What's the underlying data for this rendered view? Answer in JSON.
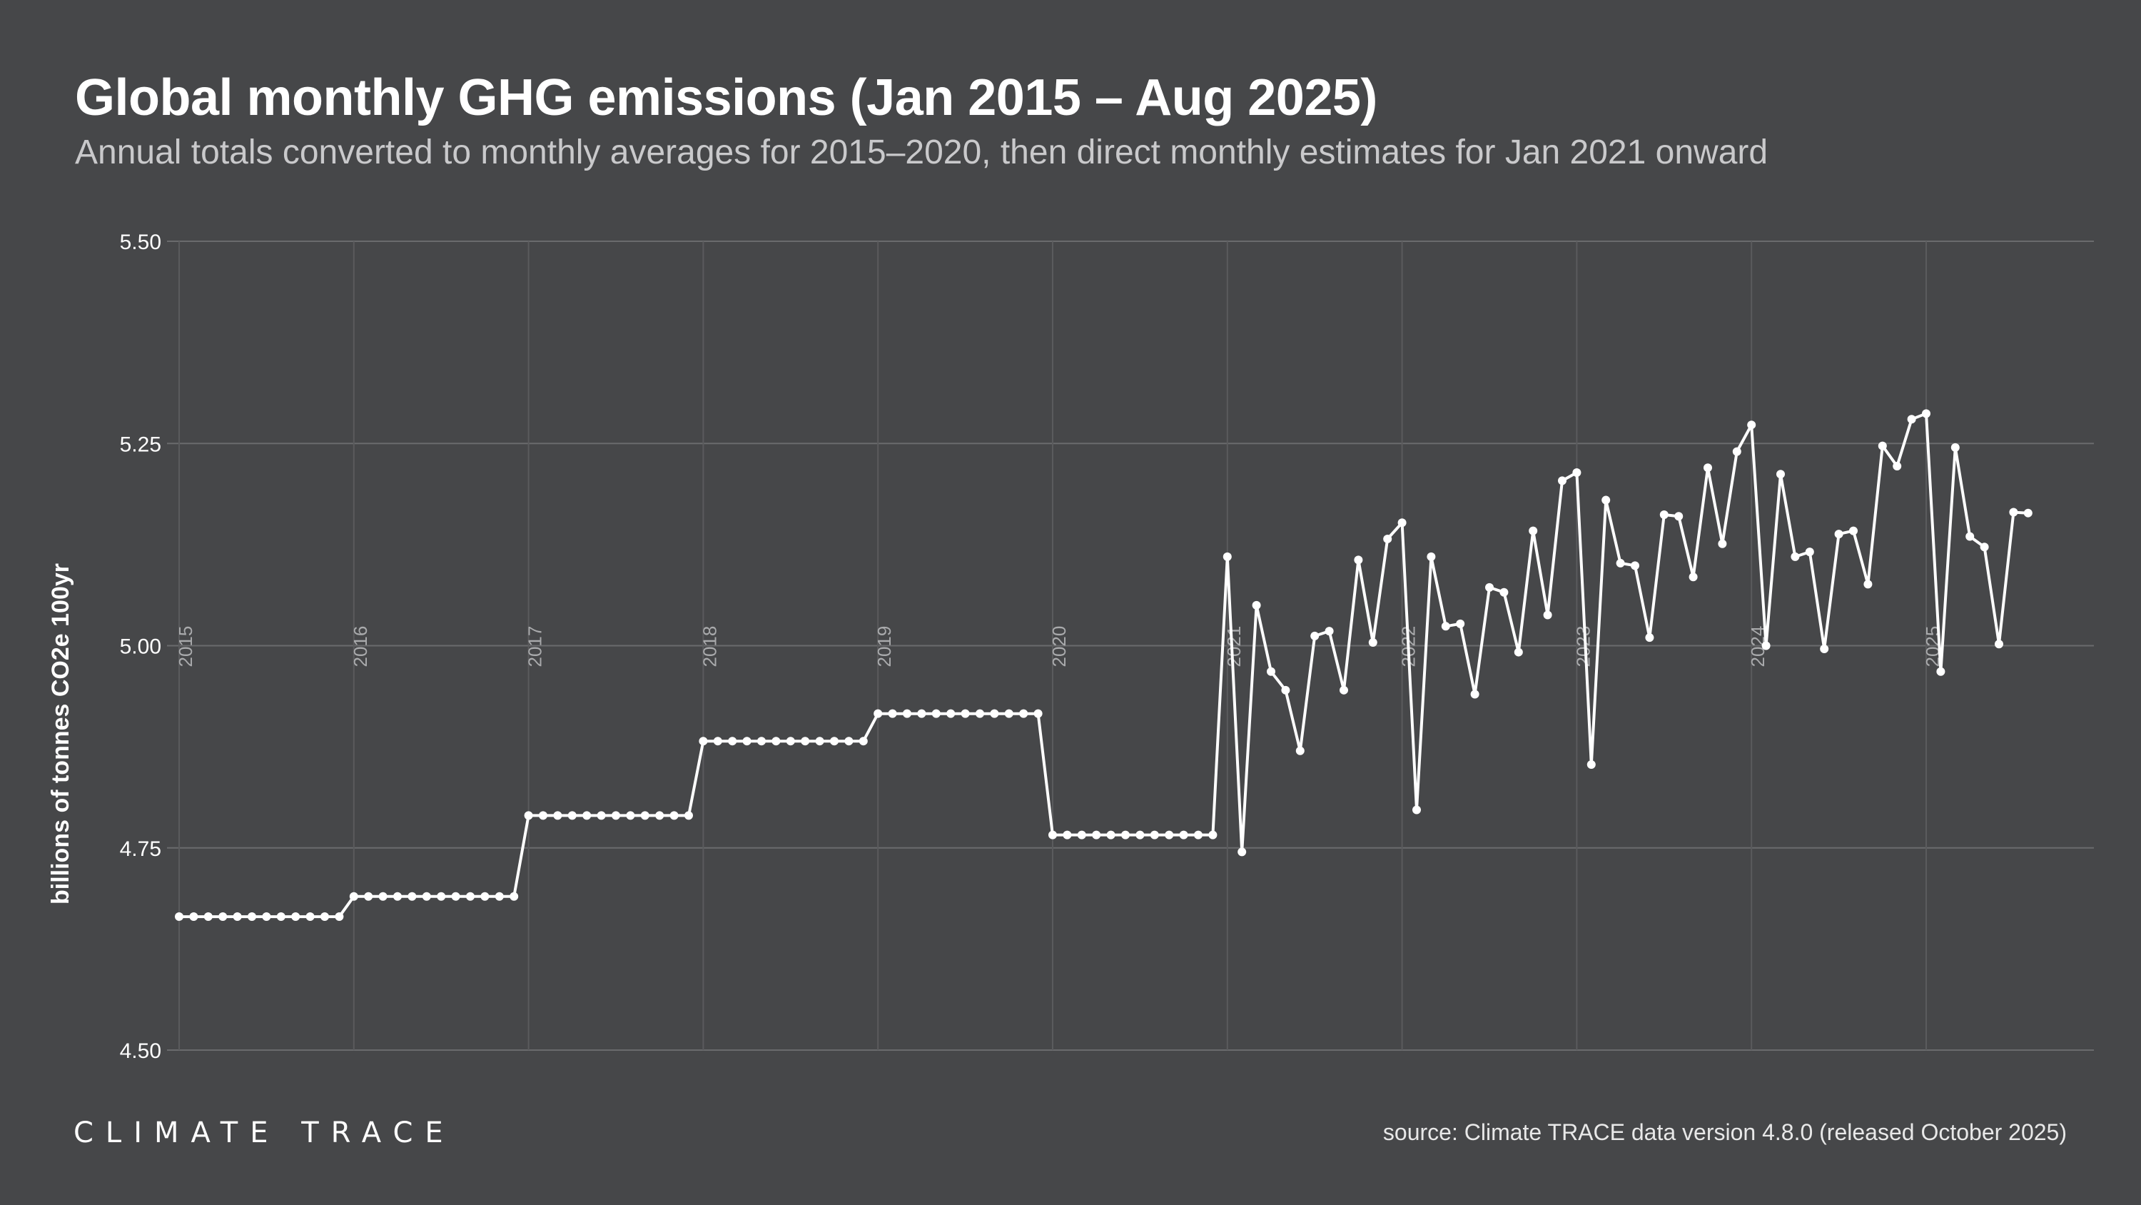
{
  "header": {
    "title": "Global monthly GHG emissions (Jan 2015 – Aug 2025)",
    "subtitle": "Annual totals converted to monthly averages for 2015–2020, then direct monthly estimates for Jan 2021 onward"
  },
  "footer": {
    "logo_text": "CLIMATE TRACE",
    "source": "source: Climate TRACE data version 4.8.0 (released October 2025)"
  },
  "colors": {
    "background": "#464749",
    "line": "#ffffff",
    "grid": "#6a6b6d",
    "year_grid": "#5a5b5d",
    "year_label": "#a9aaac"
  },
  "chart_data": {
    "type": "line",
    "title": "Global monthly GHG emissions (Jan 2015 – Aug 2025)",
    "xlabel": "",
    "ylabel": "billions of tonnes CO2e 100yr",
    "ylim": [
      4.5,
      5.5
    ],
    "yticks": [
      4.5,
      4.75,
      5.0,
      5.25,
      5.5
    ],
    "ytick_labels": [
      "4.50",
      "4.75",
      "5.00",
      "5.25",
      "5.50"
    ],
    "x_start": "2015-01",
    "x_end": "2025-08",
    "year_markers": [
      "2015",
      "2016",
      "2017",
      "2018",
      "2019",
      "2020",
      "2021",
      "2022",
      "2023",
      "2024",
      "2025"
    ],
    "grid": true,
    "series": [
      {
        "name": "Global monthly GHG emissions",
        "values": [
          4.665,
          4.665,
          4.665,
          4.665,
          4.665,
          4.665,
          4.665,
          4.665,
          4.665,
          4.665,
          4.665,
          4.665,
          4.69,
          4.69,
          4.69,
          4.69,
          4.69,
          4.69,
          4.69,
          4.69,
          4.69,
          4.69,
          4.69,
          4.69,
          4.79,
          4.79,
          4.79,
          4.79,
          4.79,
          4.79,
          4.79,
          4.79,
          4.79,
          4.79,
          4.79,
          4.79,
          4.882,
          4.882,
          4.882,
          4.882,
          4.882,
          4.882,
          4.882,
          4.882,
          4.882,
          4.882,
          4.882,
          4.882,
          4.916,
          4.916,
          4.916,
          4.916,
          4.916,
          4.916,
          4.916,
          4.916,
          4.916,
          4.916,
          4.916,
          4.916,
          4.766,
          4.766,
          4.766,
          4.766,
          4.766,
          4.766,
          4.766,
          4.766,
          4.766,
          4.766,
          4.766,
          4.766,
          5.11,
          4.745,
          5.05,
          4.968,
          4.945,
          4.87,
          5.012,
          5.018,
          4.945,
          5.106,
          5.004,
          5.132,
          5.152,
          4.797,
          5.11,
          5.024,
          5.027,
          4.94,
          5.072,
          5.066,
          4.992,
          5.142,
          5.038,
          5.204,
          5.214,
          4.853,
          5.18,
          5.102,
          5.099,
          5.01,
          5.162,
          5.16,
          5.085,
          5.22,
          5.126,
          5.24,
          5.273,
          5.0,
          5.212,
          5.11,
          5.116,
          4.996,
          5.138,
          5.142,
          5.076,
          5.247,
          5.222,
          5.28,
          5.287,
          4.968,
          5.245,
          5.135,
          5.122,
          5.002,
          5.165,
          5.164
        ]
      }
    ]
  }
}
